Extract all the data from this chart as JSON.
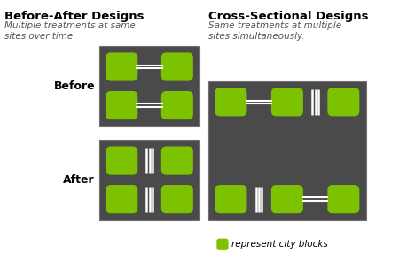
{
  "bg_color": "#ffffff",
  "dark_bg": "#4a4a4a",
  "green": "#7dc200",
  "white": "#ffffff",
  "title_ba": "Before-After Designs",
  "subtitle_ba": "Multiple treatments at same\nsites over time.",
  "title_cs": "Cross-Sectional Designs",
  "subtitle_cs": "Same treatments at multiple\nsites simultaneously.",
  "label_before": "Before",
  "label_after": "After",
  "legend_text": "represent city blocks",
  "title_fontsize": 9.5,
  "subtitle_fontsize": 7.5,
  "label_fontsize": 9
}
